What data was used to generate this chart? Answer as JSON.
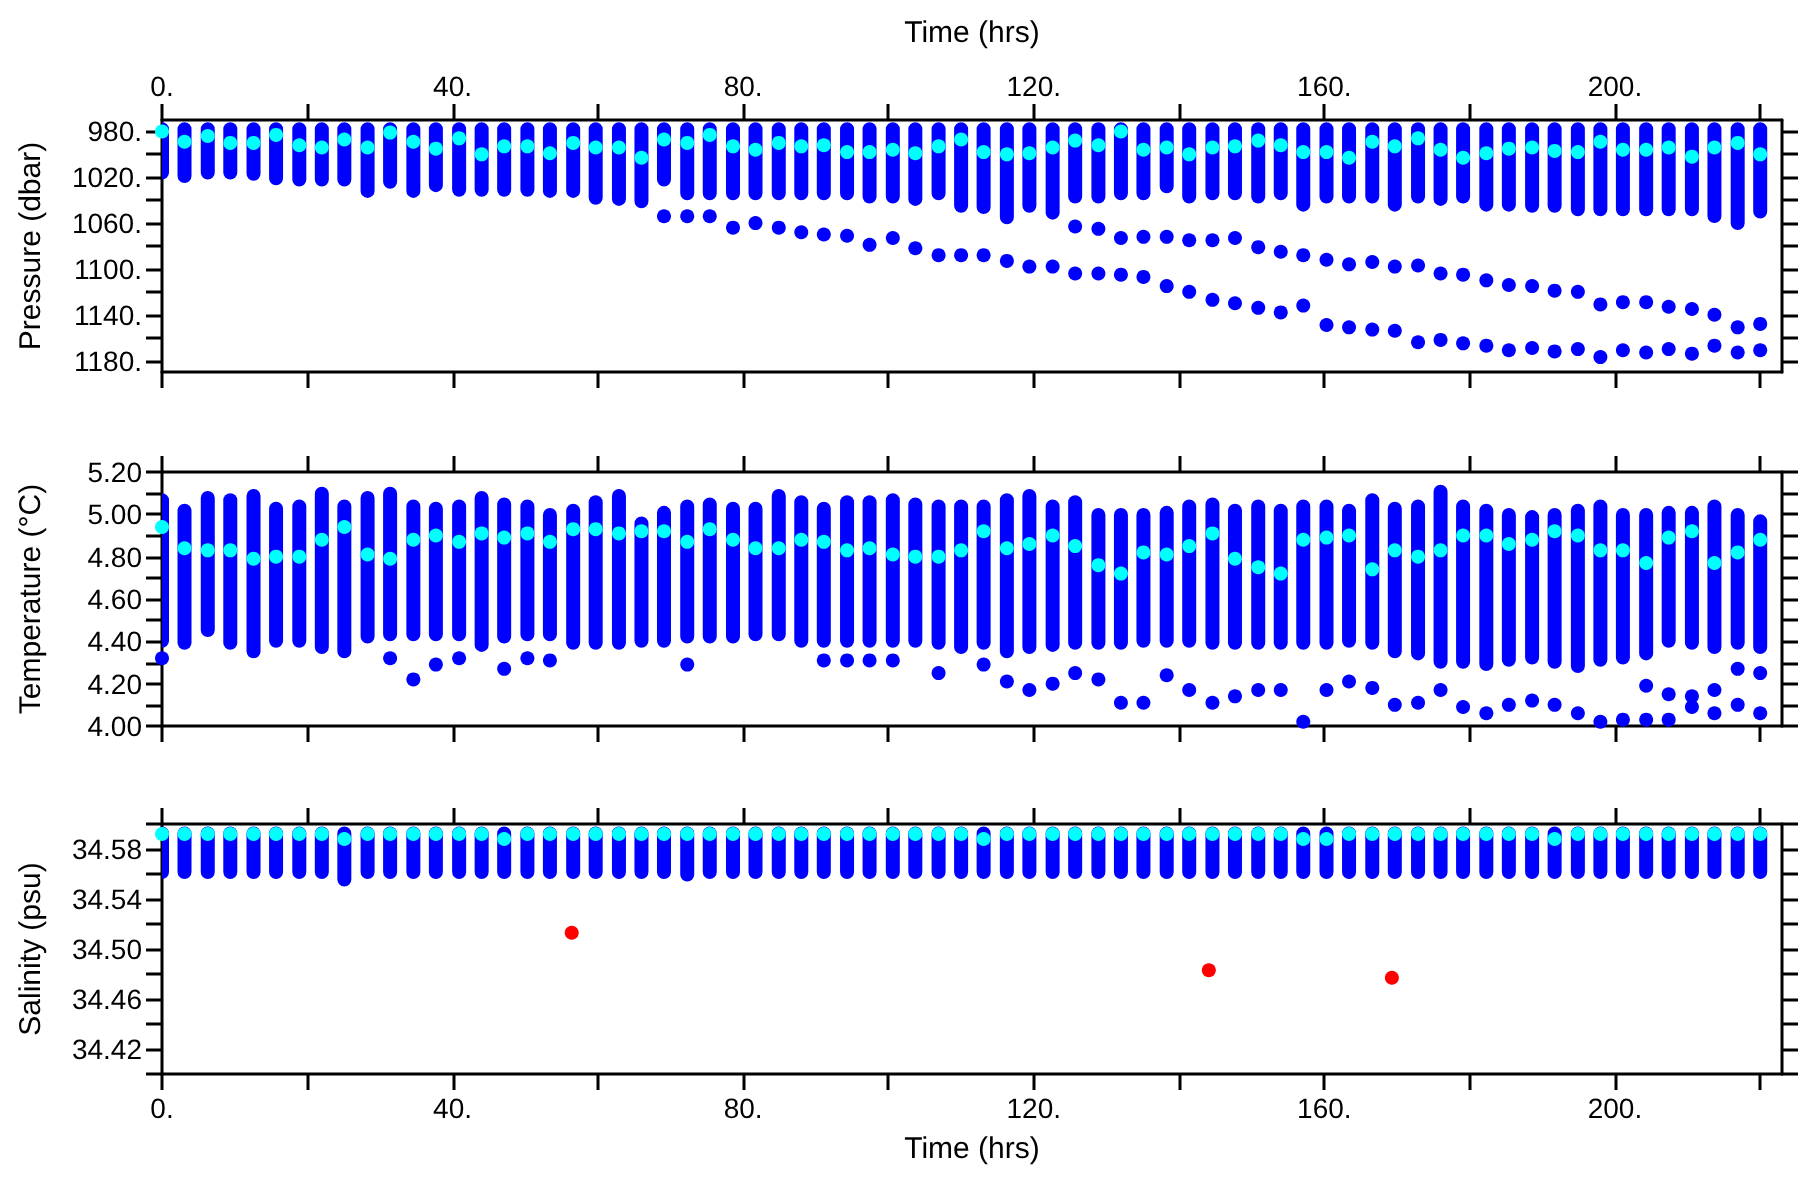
{
  "chart_data": [
    {
      "type": "scatter",
      "ylabel": "Pressure (dbar)",
      "x2label": "Time (hrs)",
      "marker": "circle",
      "xlim": [
        0,
        223
      ],
      "x2lim": [
        0,
        223
      ],
      "x2ticks": [
        {
          "value": 0,
          "label": "0."
        },
        {
          "value": 20,
          "label": null
        },
        {
          "value": 40,
          "label": "40."
        },
        {
          "value": 60,
          "label": null
        },
        {
          "value": 80,
          "label": "80."
        },
        {
          "value": 100,
          "label": null
        },
        {
          "value": 120,
          "label": "120."
        },
        {
          "value": 140,
          "label": null
        },
        {
          "value": 160,
          "label": "160."
        },
        {
          "value": 180,
          "label": null
        },
        {
          "value": 200,
          "label": "200."
        },
        {
          "value": 220,
          "label": null
        }
      ],
      "ylim": [
        1190,
        970
      ],
      "yticks": [
        {
          "value": 980,
          "label": "980."
        },
        {
          "value": 1000,
          "label": null
        },
        {
          "value": 1020,
          "label": "1020."
        },
        {
          "value": 1040,
          "label": null
        },
        {
          "value": 1060,
          "label": "1060."
        },
        {
          "value": 1080,
          "label": null
        },
        {
          "value": 1100,
          "label": "1100."
        },
        {
          "value": 1120,
          "label": null
        },
        {
          "value": 1140,
          "label": "1140."
        },
        {
          "value": 1160,
          "label": null
        },
        {
          "value": 1180,
          "label": "1180."
        }
      ],
      "x": [
        0,
        3.1,
        6.3,
        9.4,
        12.6,
        15.7,
        18.9,
        22,
        25.1,
        28.3,
        31.4,
        34.6,
        37.7,
        40.9,
        44,
        47.1,
        50.3,
        53.4,
        56.6,
        59.7,
        62.9,
        66,
        69.1,
        72.3,
        75.4,
        78.6,
        81.7,
        84.9,
        88,
        91.1,
        94.3,
        97.4,
        100.6,
        103.7,
        106.9,
        110,
        113.1,
        116.3,
        119.4,
        122.6,
        125.7,
        128.9,
        132,
        135.1,
        138.3,
        141.4,
        144.6,
        147.7,
        150.9,
        154,
        157.1,
        160.3,
        163.4,
        166.6,
        169.7,
        172.9,
        176,
        179.1,
        182.3,
        185.4,
        188.6,
        191.7,
        194.9,
        198,
        201.1,
        204.3,
        207.4,
        210.6,
        213.7,
        216.9,
        220
      ],
      "series": [
        {
          "type": "bar",
          "color": "#0000ff",
          "base": [
            972,
            972,
            972,
            972,
            972,
            972,
            972,
            972,
            972,
            972,
            972,
            972,
            972,
            972,
            972,
            972,
            972,
            972,
            972,
            972,
            972,
            972,
            972,
            972,
            972,
            972,
            972,
            972,
            972,
            972,
            972,
            972,
            972,
            972,
            972,
            972,
            972,
            972,
            972,
            972,
            972,
            972,
            972,
            972,
            972,
            972,
            972,
            972,
            972,
            972,
            972,
            972,
            972,
            972,
            972,
            972,
            972,
            972,
            972,
            972,
            972,
            972,
            972,
            972,
            972,
            972,
            972,
            972,
            972,
            972,
            972
          ],
          "values": [
            50,
            53,
            50,
            50,
            51,
            55,
            56,
            56,
            56,
            66,
            58,
            66,
            61,
            65,
            65,
            65,
            65,
            66,
            66,
            72,
            73,
            75,
            56,
            68,
            68,
            68,
            68,
            68,
            68,
            68,
            68,
            71,
            71,
            73,
            68,
            79,
            80,
            89,
            79,
            85,
            71,
            71,
            68,
            68,
            62,
            71,
            68,
            68,
            71,
            68,
            78,
            71,
            71,
            71,
            78,
            71,
            73,
            71,
            78,
            78,
            79,
            79,
            82,
            82,
            82,
            82,
            82,
            82,
            88,
            94,
            84
          ]
        },
        {
          "color": "#0000ff",
          "x": [
            69.1,
            72.3,
            75.4,
            78.6,
            81.7,
            84.9,
            88,
            91.1,
            94.3,
            97.4,
            100.6,
            103.7,
            106.9,
            110,
            113.1,
            116.3,
            119.4,
            122.6,
            125.7,
            128.9,
            132,
            135.1,
            138.3,
            141.4,
            144.6,
            147.7,
            150.9,
            154,
            157.1,
            160.3,
            163.4,
            166.6,
            169.7,
            172.9,
            176,
            179.1,
            182.3,
            185.4,
            188.6,
            191.7,
            194.9,
            198,
            201.1,
            204.3,
            207.4,
            210.6,
            213.7,
            216.9,
            220
          ],
          "values": [
            1054,
            1054,
            1054,
            1064,
            1060,
            1064,
            1068,
            1070,
            1071,
            1079,
            1073,
            1082,
            1088,
            1088,
            1088,
            1093,
            1098,
            1098,
            1104,
            1104,
            1105,
            1107,
            1115,
            1120,
            1127,
            1130,
            1134,
            1138,
            1132,
            1149,
            1151,
            1153,
            1154,
            1164,
            1162,
            1165,
            1167,
            1171,
            1169,
            1172,
            1170,
            1177,
            1171,
            1173,
            1170,
            1174,
            1167,
            1173,
            1171
          ]
        },
        {
          "color": "#0000ff",
          "x": [
            125.7,
            128.9,
            132,
            135.1,
            138.3,
            141.4,
            144.6,
            147.7,
            150.9,
            154,
            157.1,
            160.3,
            163.4,
            166.6,
            169.7,
            172.9,
            176,
            179.1,
            182.3,
            185.4,
            188.6,
            191.7,
            194.9,
            198,
            201.1,
            204.3,
            207.4,
            210.6,
            213.7,
            216.9,
            220
          ],
          "values": [
            1063,
            1065,
            1073,
            1072,
            1072,
            1075,
            1075,
            1073,
            1081,
            1085,
            1088,
            1092,
            1096,
            1094,
            1098,
            1097,
            1104,
            1105,
            1110,
            1114,
            1115,
            1119,
            1120,
            1131,
            1129,
            1129,
            1133,
            1135,
            1140,
            1151,
            1148
          ]
        },
        {
          "color": "#00ffff",
          "values": [
            980,
            989,
            984,
            990,
            990,
            983,
            992,
            994,
            987,
            994,
            981,
            989,
            995,
            986,
            1000,
            993,
            993,
            999,
            990,
            994,
            994,
            1003,
            987,
            990,
            983,
            993,
            996,
            990,
            993,
            992,
            998,
            998,
            996,
            999,
            993,
            987,
            998,
            1000,
            999,
            994,
            988,
            992,
            980,
            996,
            994,
            1000,
            994,
            993,
            988,
            992,
            998,
            998,
            1003,
            989,
            993,
            986,
            996,
            1003,
            999,
            995,
            994,
            997,
            998,
            989,
            996,
            996,
            994,
            1002,
            994,
            990,
            1000
          ]
        }
      ]
    },
    {
      "type": "scatter",
      "ylabel": "Temperature (°C)",
      "marker": "circle",
      "tick_labels": "y",
      "xlim": [
        0,
        223
      ],
      "xticks": [
        {
          "value": 0,
          "label": null
        },
        {
          "value": 20,
          "label": null
        },
        {
          "value": 40,
          "label": null
        },
        {
          "value": 60,
          "label": null
        },
        {
          "value": 80,
          "label": null
        },
        {
          "value": 100,
          "label": null
        },
        {
          "value": 120,
          "label": null
        },
        {
          "value": 140,
          "label": null
        },
        {
          "value": 160,
          "label": null
        },
        {
          "value": 180,
          "label": null
        },
        {
          "value": 200,
          "label": null
        },
        {
          "value": 220,
          "label": null
        }
      ],
      "ylim": [
        4.0,
        5.2
      ],
      "yticks": [
        {
          "value": 4.0,
          "label": "4.00"
        },
        {
          "value": 4.1,
          "label": null
        },
        {
          "value": 4.2,
          "label": "4.20"
        },
        {
          "value": 4.3,
          "label": null
        },
        {
          "value": 4.4,
          "label": "4.40"
        },
        {
          "value": 4.5,
          "label": null
        },
        {
          "value": 4.6,
          "label": "4.60"
        },
        {
          "value": 4.7,
          "label": null
        },
        {
          "value": 4.8,
          "label": "4.80"
        },
        {
          "value": 4.9,
          "label": null
        },
        {
          "value": 5.0,
          "label": "5.00"
        },
        {
          "value": 5.1,
          "label": null
        },
        {
          "value": 5.2,
          "label": "5.20"
        }
      ],
      "x": [
        0,
        3.1,
        6.3,
        9.4,
        12.6,
        15.7,
        18.9,
        22,
        25.1,
        28.3,
        31.4,
        34.6,
        37.7,
        40.9,
        44,
        47.1,
        50.3,
        53.4,
        56.6,
        59.7,
        62.9,
        66,
        69.1,
        72.3,
        75.4,
        78.6,
        81.7,
        84.9,
        88,
        91.1,
        94.3,
        97.4,
        100.6,
        103.7,
        106.9,
        110,
        113.1,
        116.3,
        119.4,
        122.6,
        125.7,
        128.9,
        132,
        135.1,
        138.3,
        141.4,
        144.6,
        147.7,
        150.9,
        154,
        157.1,
        160.3,
        163.4,
        166.6,
        169.7,
        172.9,
        176,
        179.1,
        182.3,
        185.4,
        188.6,
        191.7,
        194.9,
        198,
        201.1,
        204.3,
        207.4,
        210.6,
        213.7,
        216.9,
        220
      ],
      "series": [
        {
          "type": "bar",
          "color": "#0000ff",
          "base": [
            4.37,
            4.36,
            4.42,
            4.36,
            4.32,
            4.37,
            4.37,
            4.34,
            4.32,
            4.39,
            4.4,
            4.4,
            4.4,
            4.4,
            4.35,
            4.39,
            4.4,
            4.4,
            4.36,
            4.36,
            4.36,
            4.37,
            4.37,
            4.39,
            4.39,
            4.39,
            4.4,
            4.4,
            4.37,
            4.37,
            4.37,
            4.37,
            4.37,
            4.37,
            4.36,
            4.34,
            4.36,
            4.32,
            4.34,
            4.35,
            4.36,
            4.36,
            4.36,
            4.37,
            4.37,
            4.37,
            4.36,
            4.36,
            4.36,
            4.36,
            4.36,
            4.36,
            4.37,
            4.36,
            4.32,
            4.31,
            4.27,
            4.27,
            4.26,
            4.28,
            4.29,
            4.27,
            4.25,
            4.28,
            4.29,
            4.31,
            4.37,
            4.36,
            4.34,
            4.36,
            4.34
          ],
          "values": [
            0.73,
            0.69,
            0.69,
            0.74,
            0.8,
            0.69,
            0.7,
            0.79,
            0.75,
            0.72,
            0.73,
            0.67,
            0.66,
            0.67,
            0.76,
            0.69,
            0.67,
            0.63,
            0.69,
            0.73,
            0.76,
            0.62,
            0.67,
            0.68,
            0.69,
            0.67,
            0.66,
            0.72,
            0.72,
            0.69,
            0.72,
            0.72,
            0.73,
            0.71,
            0.71,
            0.73,
            0.71,
            0.78,
            0.78,
            0.72,
            0.73,
            0.67,
            0.67,
            0.66,
            0.67,
            0.7,
            0.72,
            0.69,
            0.71,
            0.69,
            0.71,
            0.71,
            0.68,
            0.74,
            0.74,
            0.76,
            0.87,
            0.8,
            0.79,
            0.75,
            0.73,
            0.76,
            0.8,
            0.79,
            0.74,
            0.72,
            0.67,
            0.68,
            0.73,
            0.67,
            0.66
          ]
        },
        {
          "color": "#0000ff",
          "x": [
            0,
            31.4,
            34.6,
            37.7,
            40.9,
            47.1,
            50.3,
            53.4,
            72.3,
            91.1,
            94.3,
            97.4,
            100.6,
            106.9,
            113.1,
            116.3,
            119.4,
            122.6,
            125.7,
            128.9,
            132,
            135.1,
            138.3,
            141.4,
            144.6,
            147.7,
            150.9,
            154,
            157.1,
            160.3,
            163.4,
            166.6,
            169.7,
            172.9,
            176,
            179.1,
            182.3,
            185.4,
            188.6,
            191.7,
            194.9,
            198,
            201.1,
            204.3,
            204.3,
            207.4,
            207.4,
            210.6,
            210.6,
            213.7,
            213.7,
            216.9,
            216.9,
            220,
            220
          ],
          "values": [
            4.32,
            4.32,
            4.22,
            4.29,
            4.32,
            4.27,
            4.32,
            4.31,
            4.29,
            4.31,
            4.31,
            4.31,
            4.31,
            4.25,
            4.29,
            4.21,
            4.17,
            4.2,
            4.25,
            4.22,
            4.11,
            4.11,
            4.24,
            4.17,
            4.11,
            4.14,
            4.17,
            4.17,
            4.02,
            4.17,
            4.21,
            4.18,
            4.1,
            4.11,
            4.17,
            4.09,
            4.06,
            4.1,
            4.12,
            4.1,
            4.06,
            4.02,
            4.03,
            4.19,
            4.03,
            4.15,
            4.03,
            4.14,
            4.09,
            4.17,
            4.06,
            4.27,
            4.1,
            4.25,
            4.06
          ]
        },
        {
          "color": "#00ffff",
          "values": [
            4.94,
            4.84,
            4.83,
            4.83,
            4.79,
            4.8,
            4.8,
            4.88,
            4.94,
            4.81,
            4.79,
            4.88,
            4.9,
            4.87,
            4.91,
            4.89,
            4.91,
            4.87,
            4.93,
            4.93,
            4.91,
            4.92,
            4.92,
            4.87,
            4.93,
            4.88,
            4.84,
            4.84,
            4.88,
            4.87,
            4.83,
            4.84,
            4.81,
            4.8,
            4.8,
            4.83,
            4.92,
            4.84,
            4.86,
            4.9,
            4.85,
            4.76,
            4.72,
            4.82,
            4.81,
            4.85,
            4.91,
            4.79,
            4.75,
            4.72,
            4.88,
            4.89,
            4.9,
            4.74,
            4.83,
            4.8,
            4.83,
            4.9,
            4.9,
            4.86,
            4.88,
            4.92,
            4.9,
            4.83,
            4.83,
            4.77,
            4.89,
            4.92,
            4.77,
            4.82,
            4.88
          ]
        }
      ]
    },
    {
      "type": "scatter",
      "ylabel": "Salinity (psu)",
      "xlabel": "Time (hrs)",
      "marker": "circle",
      "xlim": [
        0,
        223
      ],
      "xticks": [
        {
          "value": 0,
          "label": "0."
        },
        {
          "value": 20,
          "label": null
        },
        {
          "value": 40,
          "label": "40."
        },
        {
          "value": 60,
          "label": null
        },
        {
          "value": 80,
          "label": "80."
        },
        {
          "value": 100,
          "label": null
        },
        {
          "value": 120,
          "label": "120."
        },
        {
          "value": 140,
          "label": null
        },
        {
          "value": 160,
          "label": "160."
        },
        {
          "value": 180,
          "label": null
        },
        {
          "value": 200,
          "label": "200."
        },
        {
          "value": 220,
          "label": null
        }
      ],
      "ylim": [
        34.4,
        34.6
      ],
      "yticks": [
        {
          "value": 34.4,
          "label": null
        },
        {
          "value": 34.42,
          "label": "34.42"
        },
        {
          "value": 34.44,
          "label": null
        },
        {
          "value": 34.46,
          "label": "34.46"
        },
        {
          "value": 34.48,
          "label": null
        },
        {
          "value": 34.5,
          "label": "34.50"
        },
        {
          "value": 34.52,
          "label": null
        },
        {
          "value": 34.54,
          "label": "34.54"
        },
        {
          "value": 34.56,
          "label": null
        },
        {
          "value": 34.58,
          "label": "34.58"
        },
        {
          "value": 34.6,
          "label": null
        }
      ],
      "x": [
        0,
        3.1,
        6.3,
        9.4,
        12.6,
        15.7,
        18.9,
        22,
        25.1,
        28.3,
        31.4,
        34.6,
        37.7,
        40.9,
        44,
        47.1,
        50.3,
        53.4,
        56.6,
        59.7,
        62.9,
        66,
        69.1,
        72.3,
        75.4,
        78.6,
        81.7,
        84.9,
        88,
        91.1,
        94.3,
        97.4,
        100.6,
        103.7,
        106.9,
        110,
        113.1,
        116.3,
        119.4,
        122.6,
        125.7,
        128.9,
        132,
        135.1,
        138.3,
        141.4,
        144.6,
        147.7,
        150.9,
        154,
        157.1,
        160.3,
        163.4,
        166.6,
        169.7,
        172.9,
        176,
        179.1,
        182.3,
        185.4,
        188.6,
        191.7,
        194.9,
        198,
        201.1,
        204.3,
        207.4,
        210.6,
        213.7,
        216.9,
        220
      ],
      "series": [
        {
          "type": "bar",
          "color": "#0000ff",
          "base": [
            34.556,
            34.556,
            34.556,
            34.556,
            34.556,
            34.556,
            34.556,
            34.556,
            34.55,
            34.556,
            34.556,
            34.556,
            34.556,
            34.556,
            34.556,
            34.556,
            34.556,
            34.556,
            34.556,
            34.556,
            34.556,
            34.556,
            34.556,
            34.554,
            34.556,
            34.556,
            34.556,
            34.556,
            34.556,
            34.556,
            34.556,
            34.556,
            34.556,
            34.556,
            34.556,
            34.556,
            34.556,
            34.556,
            34.556,
            34.556,
            34.556,
            34.556,
            34.556,
            34.556,
            34.556,
            34.556,
            34.556,
            34.556,
            34.556,
            34.556,
            34.556,
            34.556,
            34.556,
            34.556,
            34.556,
            34.556,
            34.556,
            34.556,
            34.556,
            34.556,
            34.556,
            34.556,
            34.556,
            34.556,
            34.556,
            34.556,
            34.556,
            34.556,
            34.556,
            34.556,
            34.556
          ],
          "values": [
            0.042,
            0.042,
            0.042,
            0.042,
            0.042,
            0.042,
            0.042,
            0.042,
            0.048,
            0.042,
            0.042,
            0.042,
            0.042,
            0.042,
            0.042,
            0.042,
            0.042,
            0.042,
            0.042,
            0.042,
            0.042,
            0.042,
            0.042,
            0.044,
            0.042,
            0.042,
            0.042,
            0.042,
            0.042,
            0.042,
            0.042,
            0.042,
            0.042,
            0.042,
            0.042,
            0.042,
            0.042,
            0.042,
            0.042,
            0.042,
            0.042,
            0.042,
            0.042,
            0.042,
            0.042,
            0.042,
            0.042,
            0.042,
            0.042,
            0.042,
            0.042,
            0.042,
            0.042,
            0.042,
            0.042,
            0.042,
            0.042,
            0.042,
            0.042,
            0.042,
            0.042,
            0.042,
            0.042,
            0.042,
            0.042,
            0.042,
            0.042,
            0.042,
            0.042,
            0.042,
            0.042
          ]
        },
        {
          "color": "#00ffff",
          "values": [
            34.592,
            34.592,
            34.592,
            34.592,
            34.592,
            34.592,
            34.592,
            34.592,
            34.588,
            34.592,
            34.592,
            34.592,
            34.592,
            34.592,
            34.592,
            34.588,
            34.592,
            34.592,
            34.592,
            34.592,
            34.592,
            34.592,
            34.592,
            34.592,
            34.592,
            34.592,
            34.592,
            34.592,
            34.592,
            34.592,
            34.592,
            34.592,
            34.592,
            34.592,
            34.592,
            34.592,
            34.588,
            34.592,
            34.592,
            34.592,
            34.592,
            34.592,
            34.592,
            34.592,
            34.592,
            34.592,
            34.592,
            34.592,
            34.592,
            34.592,
            34.588,
            34.588,
            34.592,
            34.592,
            34.592,
            34.592,
            34.592,
            34.592,
            34.592,
            34.592,
            34.592,
            34.588,
            34.592,
            34.592,
            34.592,
            34.592,
            34.592,
            34.592,
            34.592,
            34.592,
            34.592
          ]
        },
        {
          "color": "#ff0000",
          "x": [
            56.4,
            144.1,
            169.3
          ],
          "values": [
            34.513,
            34.483,
            34.477
          ]
        }
      ]
    }
  ]
}
